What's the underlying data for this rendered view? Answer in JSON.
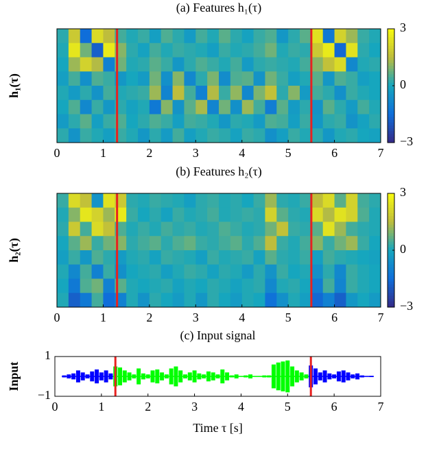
{
  "chart_data": [
    {
      "type": "heatmap",
      "title": "(a) Features h₁(τ)",
      "ylabel": "h₁(τ)",
      "xlim": [
        0,
        7
      ],
      "xticks": [
        0,
        1,
        2,
        3,
        4,
        5,
        6,
        7
      ],
      "clim": [
        -3,
        3
      ],
      "cticks": [
        3,
        0,
        {
          "value": -3,
          "label": "−3"
        }
      ],
      "markers": [
        1.3,
        5.5
      ],
      "marker_color": "#e8211f",
      "z": [
        [
          0.2,
          1.8,
          -1.5,
          2.2,
          1.5,
          0.4,
          0.1,
          0.3,
          -0.2,
          0.5,
          0.2,
          -0.3,
          0.4,
          0.1,
          0.6,
          0.2,
          -0.1,
          0.3,
          0.5,
          -0.4,
          0.2,
          0.6,
          2.4,
          -1.2,
          2.0,
          1.2,
          0.3,
          0.1
        ],
        [
          0.1,
          2.5,
          0.8,
          -1.8,
          2.6,
          1.0,
          0.2,
          -0.1,
          0.4,
          0.1,
          0.3,
          0.2,
          0.1,
          -0.2,
          0.3,
          0.1,
          0.2,
          0.4,
          0.8,
          0.1,
          0.3,
          0.2,
          1.8,
          2.6,
          -1.6,
          2.4,
          0.2,
          0.0
        ],
        [
          0.0,
          1.2,
          2.0,
          1.4,
          -1.0,
          0.8,
          0.1,
          0.2,
          0.6,
          0.3,
          -0.4,
          0.2,
          0.5,
          0.3,
          0.1,
          0.4,
          -0.3,
          0.2,
          0.3,
          0.2,
          0.1,
          0.4,
          1.0,
          1.6,
          2.2,
          -0.8,
          0.1,
          0.2
        ],
        [
          -0.2,
          0.4,
          -0.6,
          0.5,
          0.3,
          -0.4,
          0.0,
          -0.3,
          0.8,
          -0.6,
          1.0,
          -0.8,
          0.2,
          0.9,
          -0.7,
          0.5,
          0.6,
          -0.5,
          0.8,
          0.3,
          -0.2,
          0.1,
          0.6,
          -0.4,
          0.5,
          0.3,
          -0.2,
          0.0
        ],
        [
          0.1,
          -0.3,
          0.2,
          -0.5,
          0.4,
          0.1,
          0.2,
          0.3,
          1.2,
          -0.9,
          1.5,
          0.4,
          -1.0,
          1.4,
          0.3,
          1.1,
          -0.8,
          0.9,
          1.6,
          0.2,
          1.0,
          -0.3,
          0.4,
          0.2,
          -0.6,
          0.3,
          0.1,
          0.0
        ],
        [
          0.0,
          0.5,
          -0.8,
          0.3,
          -0.4,
          0.2,
          -0.1,
          0.1,
          -1.2,
          1.0,
          -0.5,
          0.6,
          1.3,
          -0.9,
          0.8,
          -0.6,
          1.2,
          0.4,
          -1.1,
          0.6,
          -0.3,
          0.2,
          -0.5,
          0.6,
          0.2,
          -0.3,
          0.4,
          0.1
        ],
        [
          -0.3,
          0.2,
          0.6,
          -0.2,
          0.3,
          0.5,
          0.0,
          0.2,
          0.5,
          0.3,
          -0.2,
          0.4,
          0.3,
          0.1,
          -0.4,
          0.2,
          0.1,
          -0.3,
          0.5,
          0.4,
          -0.2,
          0.3,
          -0.4,
          0.2,
          0.3,
          -0.5,
          -0.1,
          0.2
        ],
        [
          0.2,
          -0.5,
          0.3,
          0.1,
          -0.2,
          0.3,
          0.1,
          -0.4,
          0.2,
          -0.3,
          0.4,
          -0.2,
          0.1,
          0.3,
          0.2,
          -0.1,
          0.3,
          0.2,
          -0.6,
          -0.2,
          0.3,
          0.1,
          0.2,
          -0.4,
          0.1,
          0.2,
          0.0,
          -0.1
        ]
      ]
    },
    {
      "type": "heatmap",
      "title": "(b) Features h₂(τ)",
      "ylabel": "h₂(τ)",
      "xlim": [
        0,
        7
      ],
      "xticks": [
        0,
        1,
        2,
        3,
        4,
        5,
        6,
        7
      ],
      "clim": [
        -3,
        3
      ],
      "cticks": [
        3,
        0,
        {
          "value": -3,
          "label": "−3"
        }
      ],
      "markers": [
        1.3,
        5.5
      ],
      "marker_color": "#e8211f",
      "z": [
        [
          0.3,
          2.2,
          1.6,
          -0.5,
          2.4,
          1.8,
          0.2,
          0.1,
          0.3,
          0.2,
          0.1,
          -0.2,
          0.2,
          0.3,
          0.1,
          0.2,
          0.0,
          0.3,
          1.2,
          0.2,
          0.1,
          0.3,
          1.5,
          2.2,
          0.6,
          2.0,
          0.4,
          0.2
        ],
        [
          0.1,
          1.0,
          2.5,
          2.0,
          1.2,
          2.6,
          0.3,
          0.0,
          0.2,
          -0.1,
          0.3,
          0.1,
          0.2,
          0.4,
          0.1,
          0.2,
          0.3,
          0.2,
          2.0,
          0.6,
          0.2,
          0.1,
          2.2,
          1.4,
          2.4,
          2.0,
          0.5,
          0.1
        ],
        [
          0.2,
          1.8,
          0.4,
          2.2,
          1.6,
          0.5,
          0.1,
          0.3,
          0.1,
          0.4,
          0.2,
          0.3,
          0.1,
          0.2,
          0.5,
          0.3,
          0.1,
          0.2,
          0.8,
          1.6,
          0.3,
          0.2,
          0.6,
          2.4,
          1.2,
          0.4,
          0.2,
          0.1
        ],
        [
          0.0,
          0.6,
          1.2,
          0.3,
          0.8,
          1.0,
          0.2,
          0.4,
          0.6,
          0.2,
          0.5,
          0.7,
          0.3,
          0.2,
          0.4,
          0.6,
          0.2,
          0.5,
          1.5,
          0.3,
          0.1,
          0.4,
          1.0,
          0.3,
          0.8,
          1.2,
          0.3,
          0.0
        ],
        [
          -0.2,
          0.3,
          -0.4,
          0.5,
          0.2,
          -0.3,
          0.1,
          0.2,
          -0.1,
          0.3,
          0.2,
          0.1,
          -0.2,
          0.3,
          0.1,
          0.2,
          0.3,
          -0.1,
          0.6,
          0.2,
          0.1,
          0.3,
          -0.2,
          0.4,
          0.2,
          0.1,
          0.0,
          -0.1
        ],
        [
          0.1,
          -0.8,
          0.4,
          -1.0,
          0.3,
          -0.6,
          0.0,
          0.1,
          0.2,
          -0.2,
          0.1,
          0.3,
          0.2,
          -0.1,
          0.2,
          0.1,
          -0.3,
          0.2,
          -0.5,
          0.3,
          0.0,
          0.1,
          -0.6,
          0.2,
          -0.8,
          0.3,
          0.1,
          0.0
        ],
        [
          0.0,
          -1.2,
          0.5,
          0.8,
          -1.0,
          0.6,
          0.1,
          0.0,
          0.1,
          0.2,
          -0.1,
          0.1,
          0.0,
          0.2,
          0.1,
          -0.1,
          0.1,
          0.2,
          -0.8,
          0.1,
          0.2,
          0.0,
          -1.1,
          0.4,
          -0.9,
          0.3,
          0.1,
          0.0
        ],
        [
          0.1,
          -1.8,
          -1.2,
          0.4,
          -1.5,
          -1.0,
          0.1,
          -0.5,
          0.2,
          0.0,
          -0.3,
          0.1,
          -0.4,
          0.2,
          0.0,
          -0.3,
          0.1,
          0.0,
          -1.4,
          -0.6,
          0.1,
          -0.2,
          -1.6,
          -1.0,
          -1.8,
          -0.4,
          0.0,
          -0.3
        ]
      ]
    },
    {
      "type": "waveform",
      "title": "(c) Input signal",
      "ylabel": "Input",
      "xlabel": "Time τ [s]",
      "xlim": [
        0,
        7
      ],
      "xticks": [
        0,
        1,
        2,
        3,
        4,
        5,
        6,
        7
      ],
      "ylim": [
        -1,
        1
      ],
      "yticks": [
        1,
        {
          "value": -1,
          "label": "−1"
        }
      ],
      "markers": [
        1.3,
        5.5
      ],
      "marker_color": "#e8211f",
      "series": [
        {
          "color": "#0000ff",
          "x": [
            0.2,
            0.3,
            0.4,
            0.5,
            0.6,
            0.7,
            0.8,
            0.9,
            1.0,
            1.1,
            1.2
          ],
          "values": [
            0.05,
            0.1,
            0.15,
            0.3,
            0.2,
            0.1,
            0.25,
            0.35,
            0.2,
            0.3,
            0.15
          ]
        },
        {
          "color": "#00ff00",
          "x": [
            1.3,
            1.4,
            1.5,
            1.6,
            1.7,
            1.8,
            1.9,
            2.0,
            2.1,
            2.2,
            2.3,
            2.4,
            2.5,
            2.6,
            2.7,
            2.8,
            2.9,
            3.0,
            3.1,
            3.2,
            3.3,
            3.4,
            3.5,
            3.6,
            3.7,
            3.8,
            3.9,
            4.0,
            4.1,
            4.2,
            4.3,
            4.4,
            4.5,
            4.6,
            4.7,
            4.8,
            4.9,
            5.0,
            5.1,
            5.2,
            5.3,
            5.4
          ],
          "values": [
            0.5,
            0.45,
            0.3,
            0.2,
            0.1,
            0.4,
            0.15,
            0.1,
            0.3,
            0.35,
            0.2,
            0.1,
            0.4,
            0.5,
            0.3,
            0.1,
            0.2,
            0.3,
            0.15,
            0.1,
            0.25,
            0.2,
            0.1,
            0.35,
            0.2,
            0.05,
            0.1,
            0.02,
            0.05,
            0.1,
            0.02,
            0.02,
            0.05,
            0.05,
            0.6,
            0.7,
            0.75,
            0.8,
            0.5,
            0.3,
            0.2,
            0.1
          ]
        },
        {
          "color": "#0000ff",
          "x": [
            5.5,
            5.6,
            5.7,
            5.8,
            5.9,
            6.0,
            6.1,
            6.2,
            6.3,
            6.4,
            6.5,
            6.6,
            6.7,
            6.8
          ],
          "values": [
            0.55,
            0.4,
            0.2,
            0.3,
            0.15,
            0.1,
            0.25,
            0.3,
            0.2,
            0.1,
            0.15,
            0.05,
            0.02,
            0.03
          ]
        }
      ]
    }
  ]
}
